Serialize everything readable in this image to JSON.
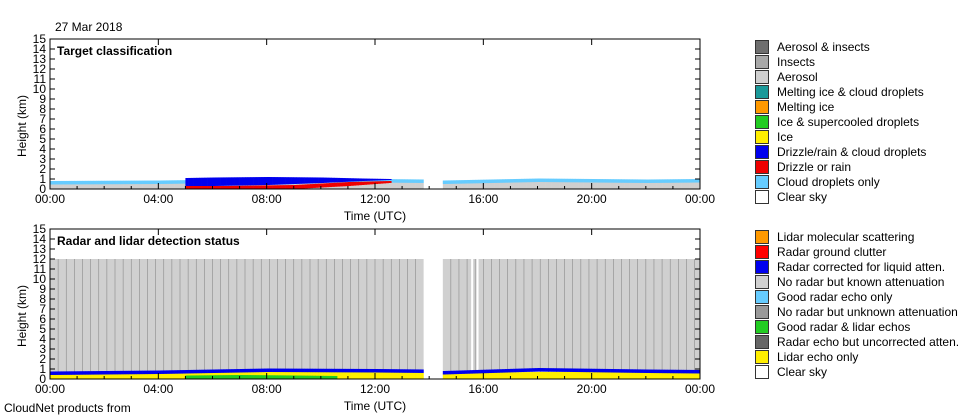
{
  "date_label": "27 Mar 2018",
  "footer_text": "CloudNet products from",
  "chart_data": [
    {
      "type": "heatmap",
      "title": "Target classification",
      "xlabel": "Time (UTC)",
      "ylabel": "Height (km)",
      "xlim": [
        "00:00",
        "24:00"
      ],
      "ylim": [
        0,
        15
      ],
      "xtick_labels": [
        "00:00",
        "04:00",
        "08:00",
        "12:00",
        "16:00",
        "20:00",
        "00:00"
      ],
      "ytick_labels": [
        "0",
        "1",
        "2",
        "3",
        "4",
        "5",
        "6",
        "7",
        "8",
        "9",
        "10",
        "11",
        "12",
        "13",
        "14",
        "15"
      ],
      "data_gap_hours": [
        13.8,
        14.5
      ],
      "legend": [
        {
          "label": "Aerosol & insects",
          "color": "#6e6e6e"
        },
        {
          "label": "Insects",
          "color": "#a8a8a8"
        },
        {
          "label": "Aerosol",
          "color": "#cfcfcf"
        },
        {
          "label": "Melting ice & cloud droplets",
          "color": "#1a9999"
        },
        {
          "label": "Melting ice",
          "color": "#ff9900"
        },
        {
          "label": "Ice & supercooled droplets",
          "color": "#22cc22"
        },
        {
          "label": "Ice",
          "color": "#ffee00"
        },
        {
          "label": "Drizzle/rain & cloud droplets",
          "color": "#0000ee"
        },
        {
          "label": "Drizzle or rain",
          "color": "#ee0000"
        },
        {
          "label": "Cloud droplets only",
          "color": "#66ccff"
        },
        {
          "label": "Clear sky",
          "color": "#ffffff"
        }
      ],
      "layers": [
        {
          "category": "Aerosol",
          "points": [
            [
              0,
              0.75
            ],
            [
              4,
              0.8
            ],
            [
              8,
              0.9
            ],
            [
              12,
              0.95
            ],
            [
              13.8,
              0.9
            ],
            [
              14.5,
              0.8
            ],
            [
              18,
              0.95
            ],
            [
              22,
              0.9
            ],
            [
              24,
              0.95
            ]
          ]
        },
        {
          "category": "Cloud droplets only",
          "thickness_km": 0.35,
          "points": [
            [
              0,
              0.8
            ],
            [
              4,
              0.85
            ],
            [
              8,
              1.0
            ],
            [
              12,
              1.0
            ],
            [
              13.8,
              0.95
            ],
            [
              14.5,
              0.85
            ],
            [
              18,
              1.05
            ],
            [
              22,
              0.95
            ],
            [
              24,
              1.0
            ]
          ]
        },
        {
          "category": "Drizzle/rain & cloud droplets",
          "ranges": [
            [
              5.0,
              0.2,
              1.1
            ],
            [
              6.0,
              0.3,
              1.15
            ],
            [
              8.0,
              0.4,
              1.2
            ],
            [
              10.0,
              0.6,
              1.15
            ],
            [
              11.5,
              0.8,
              1.05
            ],
            [
              12.5,
              0.9,
              1.0
            ]
          ]
        },
        {
          "category": "Drizzle or rain",
          "ranges": [
            [
              5.0,
              0.0,
              0.3
            ],
            [
              6.5,
              0.0,
              0.3
            ],
            [
              9.0,
              0.0,
              0.4
            ],
            [
              11.0,
              0.3,
              0.7
            ],
            [
              12.5,
              0.6,
              0.8
            ]
          ]
        }
      ]
    },
    {
      "type": "heatmap",
      "title": "Radar and lidar detection status",
      "xlabel": "Time (UTC)",
      "ylabel": "Height (km)",
      "xlim": [
        "00:00",
        "24:00"
      ],
      "ylim": [
        0,
        15
      ],
      "xtick_labels": [
        "00:00",
        "04:00",
        "08:00",
        "12:00",
        "16:00",
        "20:00",
        "00:00"
      ],
      "ytick_labels": [
        "0",
        "1",
        "2",
        "3",
        "4",
        "5",
        "6",
        "7",
        "8",
        "9",
        "10",
        "11",
        "12",
        "13",
        "14",
        "15"
      ],
      "data_gap_hours": [
        13.8,
        14.5
      ],
      "attenuation_top_km": 12,
      "legend": [
        {
          "label": "Lidar molecular scattering",
          "color": "#ff9900"
        },
        {
          "label": "Radar ground clutter",
          "color": "#ff0000"
        },
        {
          "label": "Radar corrected for liquid atten.",
          "color": "#0000ee"
        },
        {
          "label": "No radar but known attenuation",
          "color": "#d0d0d0"
        },
        {
          "label": "Good radar echo only",
          "color": "#66ccff"
        },
        {
          "label": "No radar but unknown attenuation",
          "color": "#999999"
        },
        {
          "label": "Good radar & lidar echos",
          "color": "#22cc22"
        },
        {
          "label": "Radar echo but uncorrected atten.",
          "color": "#666666"
        },
        {
          "label": "Lidar echo only",
          "color": "#ffee00"
        },
        {
          "label": "Clear sky",
          "color": "#ffffff"
        }
      ],
      "layers": [
        {
          "category": "Lidar echo only",
          "points": [
            [
              0,
              0.5
            ],
            [
              4,
              0.6
            ],
            [
              8,
              0.7
            ],
            [
              12,
              0.75
            ],
            [
              13.8,
              0.7
            ],
            [
              14.5,
              0.6
            ],
            [
              18,
              0.7
            ],
            [
              22,
              0.75
            ],
            [
              24,
              0.8
            ]
          ]
        },
        {
          "category": "Radar corrected for liquid atten.",
          "thickness_km": 0.35,
          "points": [
            [
              0,
              0.75
            ],
            [
              4,
              0.85
            ],
            [
              8,
              1.05
            ],
            [
              12,
              1.0
            ],
            [
              13.8,
              0.95
            ],
            [
              14.5,
              0.8
            ],
            [
              18,
              1.1
            ],
            [
              22,
              0.95
            ],
            [
              24,
              0.9
            ]
          ]
        },
        {
          "category": "Good radar & lidar echos",
          "ranges": [
            [
              5.0,
              0.0,
              0.35
            ],
            [
              7.0,
              0.0,
              0.4
            ],
            [
              9.0,
              0.0,
              0.35
            ],
            [
              10.5,
              0.0,
              0.3
            ]
          ]
        }
      ]
    }
  ]
}
